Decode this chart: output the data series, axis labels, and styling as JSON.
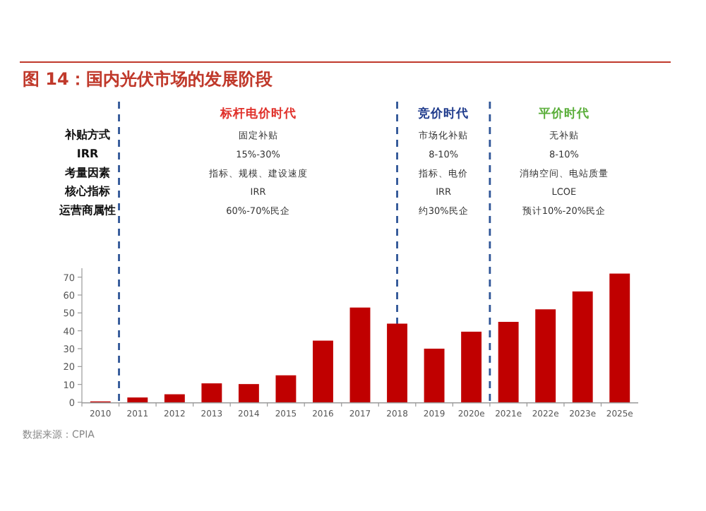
{
  "chart_data": [
    {
      "type": "other",
      "title": "图 14：国内光伏市场的发展阶段",
      "categories": [
        "标杆电价时代",
        "竞价时代",
        "平价时代"
      ],
      "colors": [
        "#e0302a",
        "#1f3b8c",
        "#5aae3a"
      ],
      "y_categories": [
        "补贴方式",
        "IRR",
        "考量因素",
        "核心指标",
        "运营商属性"
      ],
      "cell_labels": [
        [
          "固定补贴",
          "市场化补贴",
          "无补贴"
        ],
        [
          "15%-30%",
          "8-10%",
          "8-10%"
        ],
        [
          "指标、规模、建设速度",
          "指标、电价",
          "消纳空间、电站质量"
        ],
        [
          "IRR",
          "IRR",
          "LCOE"
        ],
        [
          "60%-70%民企",
          "约30%民企",
          "预计10%-20%民企"
        ]
      ]
    },
    {
      "type": "bar",
      "categories": [
        "2010",
        "2011",
        "2012",
        "2013",
        "2014",
        "2015",
        "2016",
        "2017",
        "2018",
        "2019",
        "2020e",
        "2021e",
        "2022e",
        "2023e",
        "2025e"
      ],
      "values": [
        0.5,
        2.7,
        4.5,
        10.6,
        10.2,
        15.1,
        34.5,
        53,
        44,
        30,
        39.5,
        45,
        52,
        62,
        72
      ],
      "color": "#c00000",
      "ylim": [
        0,
        75
      ],
      "yticks": [
        0,
        10,
        20,
        30,
        40,
        50,
        60,
        70
      ],
      "annotations": [
        "数据来源：CPIA"
      ]
    }
  ]
}
